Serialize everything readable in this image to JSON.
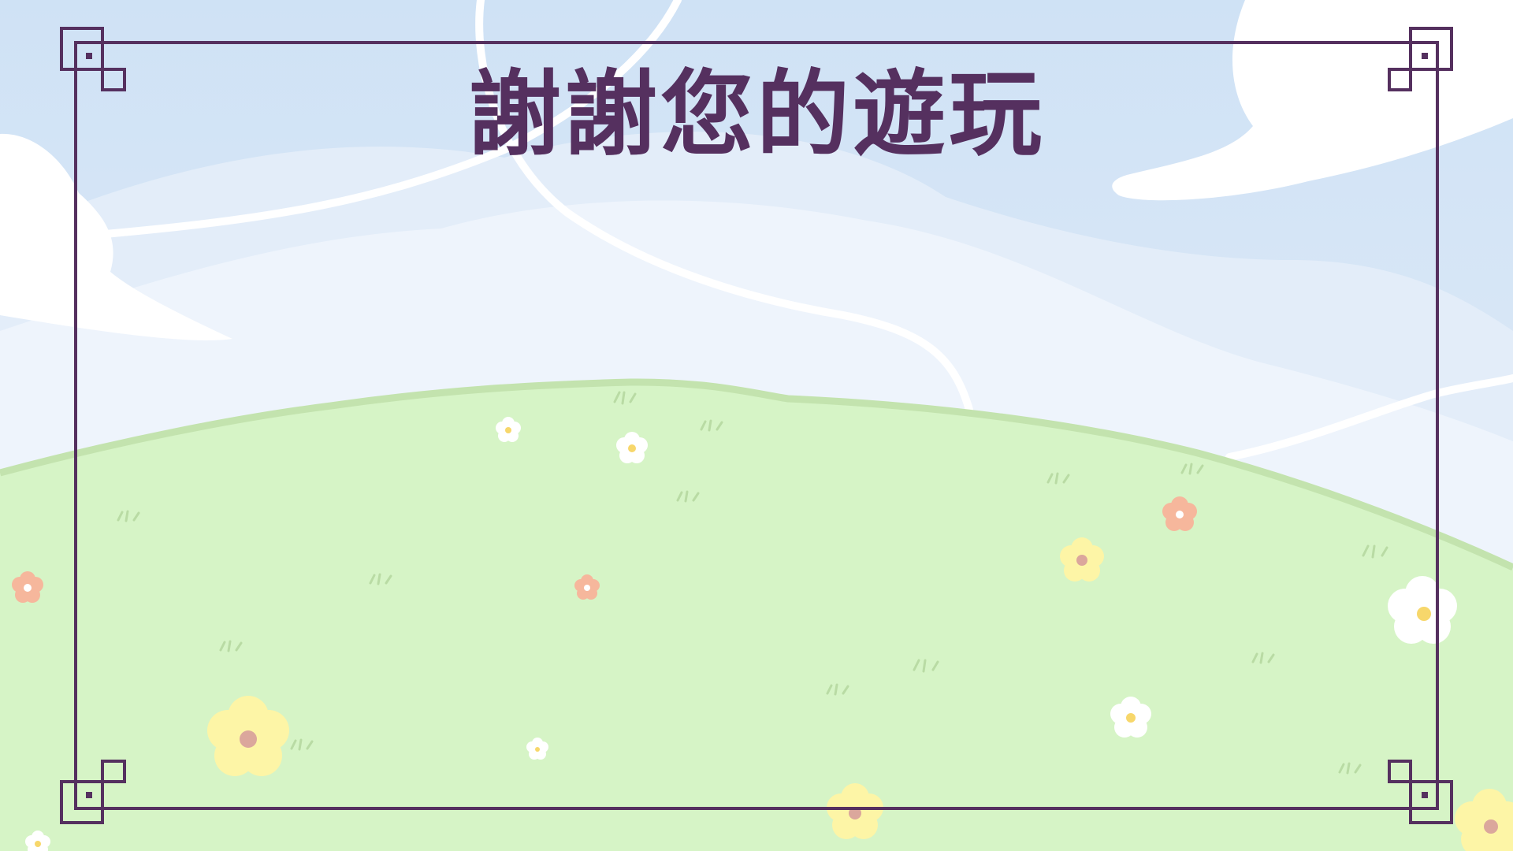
{
  "screen": {
    "title": "謝謝您的遊玩"
  },
  "colors": {
    "sky_top": "#cfe2f5",
    "sky_low": "#e6effa",
    "haze": "#eef4fc",
    "cloud": "#ffffff",
    "hill": "#d6f4c6",
    "hill_edge": "#c3e3ae",
    "grass_tuft": "#b9dba4",
    "frame": "#55305f",
    "title": "#55305f",
    "flower_white": "#ffffff",
    "flower_yellow": "#fdf5a6",
    "flower_peach": "#f6b79c",
    "flower_center_yellow": "#f7d76b",
    "flower_center_pink": "#dba79c"
  },
  "icons": {
    "frame_corner": "square-knot-corner-icon",
    "flower": "five-petal-flower-icon",
    "grass": "grass-tuft-icon"
  }
}
